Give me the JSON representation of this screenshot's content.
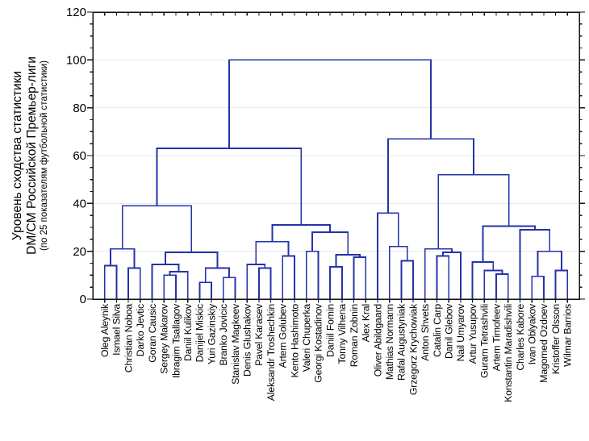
{
  "figure": {
    "background": "#ffffff",
    "frame_color": "#111111",
    "grid_color": "#e9e9e9"
  },
  "chart_data": {
    "type": "dendrogram",
    "title": "",
    "ylabel_lines": [
      "Уровень сходства статистики",
      "DM/CM Российской Премьер-лиги",
      "(по 25 показателям футбольной статистики)"
    ],
    "ylim": [
      0,
      120
    ],
    "yticks": [
      0,
      20,
      40,
      60,
      80,
      100,
      120
    ],
    "minor_tick_step": 5,
    "grid_values": [
      20,
      40,
      60,
      80,
      100
    ],
    "legend": "none",
    "link_color": "#2433aa",
    "leaves": [
      "Oleg Aleynik",
      "Ismael Silva",
      "Christian Noboa",
      "Darko Jevtic",
      "Goran Causic",
      "Sergey Makarov",
      "Ibragim Tsallagov",
      "Daniil Kulikov",
      "Danijel Miskic",
      "Yuri Gazinskiy",
      "Branko Jovicic",
      "Stanislav Magkeev",
      "Denis Glushakov",
      "Pavel Karasev",
      "Aleksandr Troshechkin",
      "Artem Golubev",
      "Kento Hashimoto",
      "Valeri Chuperka",
      "Georgi Kostadinov",
      "Daniil Fomin",
      "Tonny Vilhena",
      "Roman Zobnin",
      "Alex Kral",
      "Oliver Abildgaard",
      "Mathias Normann",
      "Rafal Augustyniak",
      "Grzegorz Krychowiak",
      "Anton Shvets",
      "Catalin Carp",
      "Danil Glebov",
      "Nail Umyarov",
      "Artur Yusupov",
      "Guram Tetrashvili",
      "Artem Timofeev",
      "Konstantin Maradishvili",
      "Charles Kabore",
      "Ivan Oblyakov",
      "Magomed Ozdoev",
      "Kristoffer Olsson",
      "Wilmar Barrios"
    ],
    "tree": [
      100,
      [
        63,
        [
          39,
          [
            21,
            [
              14,
              0,
              1
            ],
            [
              13,
              2,
              3
            ]
          ],
          [
            19.5,
            [
              14.5,
              4,
              [
                11.5,
                [
                  10,
                  5,
                  6
                ],
                7
              ]
            ],
            [
              13,
              [
                7,
                8,
                9
              ],
              [
                9,
                10,
                11
              ]
            ]
          ]
        ],
        [
          31,
          [
            24,
            [
              14.5,
              12,
              [
                13,
                13,
                14
              ]
            ],
            [
              18,
              15,
              16
            ]
          ],
          [
            28,
            [
              20,
              17,
              18
            ],
            [
              18.5,
              [
                13.5,
                19,
                20
              ],
              [
                17.5,
                21,
                22
              ]
            ]
          ]
        ]
      ],
      [
        67,
        [
          36,
          23,
          [
            22,
            24,
            [
              16,
              25,
              26
            ]
          ]
        ],
        [
          52,
          [
            21,
            27,
            [
              19.5,
              [
                18,
                28,
                29
              ],
              30
            ]
          ],
          [
            30.5,
            [
              15.5,
              31,
              [
                12,
                32,
                [
                  10.5,
                  33,
                  34
                ]
              ]
            ],
            [
              29,
              35,
              [
                20,
                [
                  9.5,
                  36,
                  37
                ],
                [
                  12,
                  38,
                  39
                ]
              ]
            ]
          ]
        ]
      ]
    ]
  }
}
